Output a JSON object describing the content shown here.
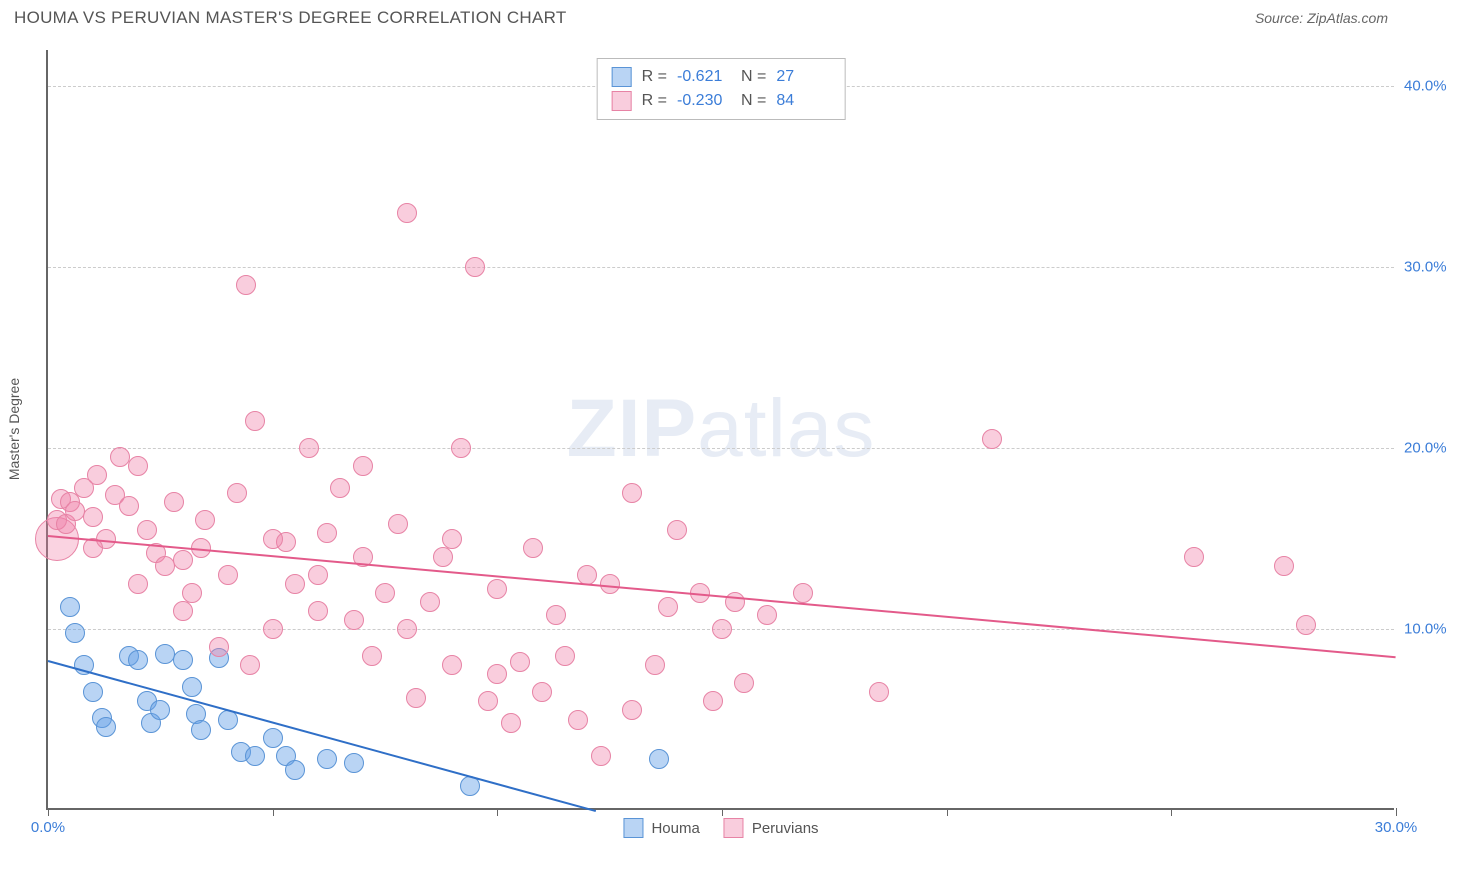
{
  "header": {
    "title": "HOUMA VS PERUVIAN MASTER'S DEGREE CORRELATION CHART",
    "source": "Source: ZipAtlas.com"
  },
  "watermark": {
    "zip": "ZIP",
    "atlas": "atlas"
  },
  "chart": {
    "type": "scatter",
    "background_color": "#ffffff",
    "grid_color": "#cccccc",
    "axis_color": "#666666",
    "y_axis_label": "Master's Degree",
    "xlim": [
      0,
      30
    ],
    "ylim": [
      0,
      42
    ],
    "x_ticks": [
      0,
      5,
      10,
      15,
      20,
      25,
      30
    ],
    "x_tick_labels": [
      "0.0%",
      "",
      "",
      "",
      "",
      "",
      "30.0%"
    ],
    "y_ticks": [
      10,
      20,
      30,
      40
    ],
    "y_tick_labels": [
      "10.0%",
      "20.0%",
      "30.0%",
      "40.0%"
    ],
    "label_color": "#3b7dd8",
    "label_fontsize": 15,
    "axis_label_color": "#555555",
    "marker_radius": 10,
    "marker_opacity": 0.55,
    "series": [
      {
        "name": "Houma",
        "color_fill": "rgba(100,160,230,0.45)",
        "color_stroke": "#5a94d6",
        "R": "-0.621",
        "N": "27",
        "trend": {
          "x1": 0,
          "y1": 8.3,
          "x2": 12.2,
          "y2": 0,
          "color": "#2f6fc7",
          "width": 2
        },
        "points": [
          [
            0.5,
            11.2
          ],
          [
            0.6,
            9.8
          ],
          [
            0.8,
            8.0
          ],
          [
            1.0,
            6.5
          ],
          [
            1.2,
            5.1
          ],
          [
            1.3,
            4.6
          ],
          [
            1.8,
            8.5
          ],
          [
            2.0,
            8.3
          ],
          [
            2.2,
            6.0
          ],
          [
            2.3,
            4.8
          ],
          [
            2.5,
            5.5
          ],
          [
            2.6,
            8.6
          ],
          [
            3.0,
            8.3
          ],
          [
            3.2,
            6.8
          ],
          [
            3.3,
            5.3
          ],
          [
            3.4,
            4.4
          ],
          [
            3.8,
            8.4
          ],
          [
            4.0,
            5.0
          ],
          [
            4.3,
            3.2
          ],
          [
            4.6,
            3.0
          ],
          [
            5.0,
            4.0
          ],
          [
            5.3,
            3.0
          ],
          [
            5.5,
            2.2
          ],
          [
            6.2,
            2.8
          ],
          [
            6.8,
            2.6
          ],
          [
            9.4,
            1.3
          ],
          [
            13.6,
            2.8
          ]
        ]
      },
      {
        "name": "Peruvians",
        "color_fill": "rgba(240,130,170,0.40)",
        "color_stroke": "#e783a5",
        "R": "-0.230",
        "N": "84",
        "trend": {
          "x1": 0,
          "y1": 15.2,
          "x2": 30,
          "y2": 8.5,
          "color": "#e35a8a",
          "width": 2
        },
        "points": [
          [
            0.2,
            16.0
          ],
          [
            0.3,
            17.2
          ],
          [
            0.4,
            15.8
          ],
          [
            0.5,
            17.0
          ],
          [
            0.6,
            16.5
          ],
          [
            0.8,
            17.8
          ],
          [
            1.0,
            16.2
          ],
          [
            1.1,
            18.5
          ],
          [
            1.3,
            15.0
          ],
          [
            1.5,
            17.4
          ],
          [
            1.6,
            19.5
          ],
          [
            1.8,
            16.8
          ],
          [
            2.0,
            19.0
          ],
          [
            2.2,
            15.5
          ],
          [
            2.4,
            14.2
          ],
          [
            2.6,
            13.5
          ],
          [
            2.8,
            17.0
          ],
          [
            3.0,
            13.8
          ],
          [
            3.2,
            12.0
          ],
          [
            3.4,
            14.5
          ],
          [
            3.5,
            16.0
          ],
          [
            3.8,
            9.0
          ],
          [
            4.0,
            13.0
          ],
          [
            4.2,
            17.5
          ],
          [
            4.4,
            29.0
          ],
          [
            4.6,
            21.5
          ],
          [
            5.0,
            10.0
          ],
          [
            5.3,
            14.8
          ],
          [
            5.5,
            12.5
          ],
          [
            5.8,
            20.0
          ],
          [
            6.0,
            11.0
          ],
          [
            6.2,
            15.3
          ],
          [
            6.5,
            17.8
          ],
          [
            6.8,
            10.5
          ],
          [
            7.0,
            19.0
          ],
          [
            7.2,
            8.5
          ],
          [
            7.5,
            12.0
          ],
          [
            7.8,
            15.8
          ],
          [
            8.0,
            33.0
          ],
          [
            8.2,
            6.2
          ],
          [
            8.5,
            11.5
          ],
          [
            8.8,
            14.0
          ],
          [
            9.0,
            8.0
          ],
          [
            9.2,
            20.0
          ],
          [
            9.5,
            30.0
          ],
          [
            9.8,
            6.0
          ],
          [
            10.0,
            12.2
          ],
          [
            10.3,
            4.8
          ],
          [
            10.5,
            8.2
          ],
          [
            10.8,
            14.5
          ],
          [
            11.0,
            6.5
          ],
          [
            11.3,
            10.8
          ],
          [
            11.8,
            5.0
          ],
          [
            12.0,
            13.0
          ],
          [
            12.3,
            3.0
          ],
          [
            12.5,
            12.5
          ],
          [
            13.0,
            17.5
          ],
          [
            13.5,
            8.0
          ],
          [
            13.8,
            11.2
          ],
          [
            14.0,
            15.5
          ],
          [
            14.5,
            12.0
          ],
          [
            14.8,
            6.0
          ],
          [
            15.0,
            10.0
          ],
          [
            15.3,
            11.5
          ],
          [
            15.5,
            7.0
          ],
          [
            16.0,
            10.8
          ],
          [
            16.8,
            12.0
          ],
          [
            18.5,
            6.5
          ],
          [
            21.0,
            20.5
          ],
          [
            25.5,
            14.0
          ],
          [
            27.5,
            13.5
          ],
          [
            28.0,
            10.2
          ],
          [
            1.0,
            14.5
          ],
          [
            2.0,
            12.5
          ],
          [
            3.0,
            11.0
          ],
          [
            4.5,
            8.0
          ],
          [
            5.0,
            15.0
          ],
          [
            6.0,
            13.0
          ],
          [
            7.0,
            14.0
          ],
          [
            8.0,
            10.0
          ],
          [
            9.0,
            15.0
          ],
          [
            10.0,
            7.5
          ],
          [
            11.5,
            8.5
          ],
          [
            13.0,
            5.5
          ]
        ]
      }
    ],
    "extra_markers": [
      {
        "x": 0.2,
        "y": 15.0,
        "r": 22,
        "fill": "rgba(240,130,170,0.35)",
        "stroke": "#e783a5"
      }
    ]
  },
  "legend_stats": {
    "r_label": "R =",
    "n_label": "N ="
  },
  "bottom_legend": {
    "items": [
      {
        "label": "Houma",
        "fill": "rgba(100,160,230,0.45)",
        "stroke": "#5a94d6"
      },
      {
        "label": "Peruvians",
        "fill": "rgba(240,130,170,0.40)",
        "stroke": "#e783a5"
      }
    ]
  }
}
